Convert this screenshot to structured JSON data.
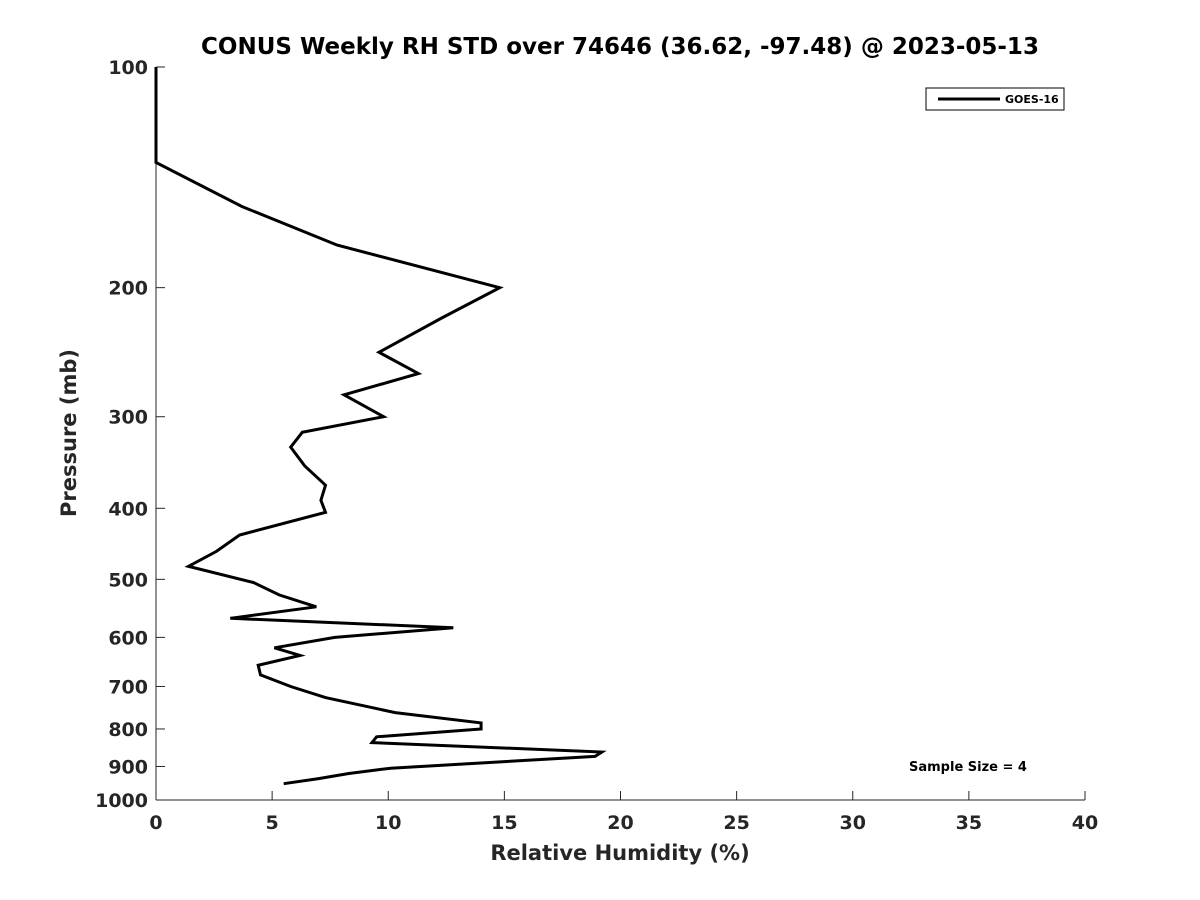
{
  "chart_data": {
    "type": "line",
    "title": "CONUS Weekly RH STD over 74646 (36.62, -97.48) @ 2023-05-13",
    "xlabel": "Relative Humidity (%)",
    "ylabel": "Pressure (mb)",
    "xlim": [
      0,
      40
    ],
    "ylim": [
      1000,
      100
    ],
    "yscale": "log",
    "y_reversed": true,
    "x_ticks": [
      0,
      5,
      10,
      15,
      20,
      25,
      30,
      35,
      40
    ],
    "y_ticks": [
      100,
      200,
      300,
      400,
      500,
      600,
      700,
      800,
      900,
      1000
    ],
    "grid": false,
    "legend": "top-right",
    "annotation": "Sample Size = 4",
    "series": [
      {
        "name": "GOES-16",
        "color": "#000000",
        "x": [
          0.0,
          0.0,
          3.7,
          7.8,
          14.8,
          12.3,
          9.6,
          11.3,
          8.1,
          9.8,
          6.3,
          5.8,
          6.4,
          7.3,
          7.1,
          7.3,
          3.6,
          2.6,
          1.4,
          4.2,
          5.3,
          6.9,
          3.2,
          12.8,
          7.7,
          5.1,
          6.2,
          4.4,
          4.5,
          5.8,
          7.3,
          10.3,
          14.0,
          14.0,
          9.5,
          9.3,
          19.2,
          18.9,
          10.1,
          8.3,
          7.0,
          5.5
        ],
        "y": [
          100,
          135,
          155,
          175,
          200,
          220,
          245,
          262,
          280,
          300,
          315,
          330,
          350,
          372,
          390,
          405,
          435,
          458,
          480,
          505,
          525,
          545,
          565,
          582,
          600,
          620,
          635,
          655,
          675,
          700,
          725,
          760,
          785,
          800,
          820,
          835,
          860,
          872,
          905,
          920,
          935,
          950
        ]
      }
    ]
  }
}
